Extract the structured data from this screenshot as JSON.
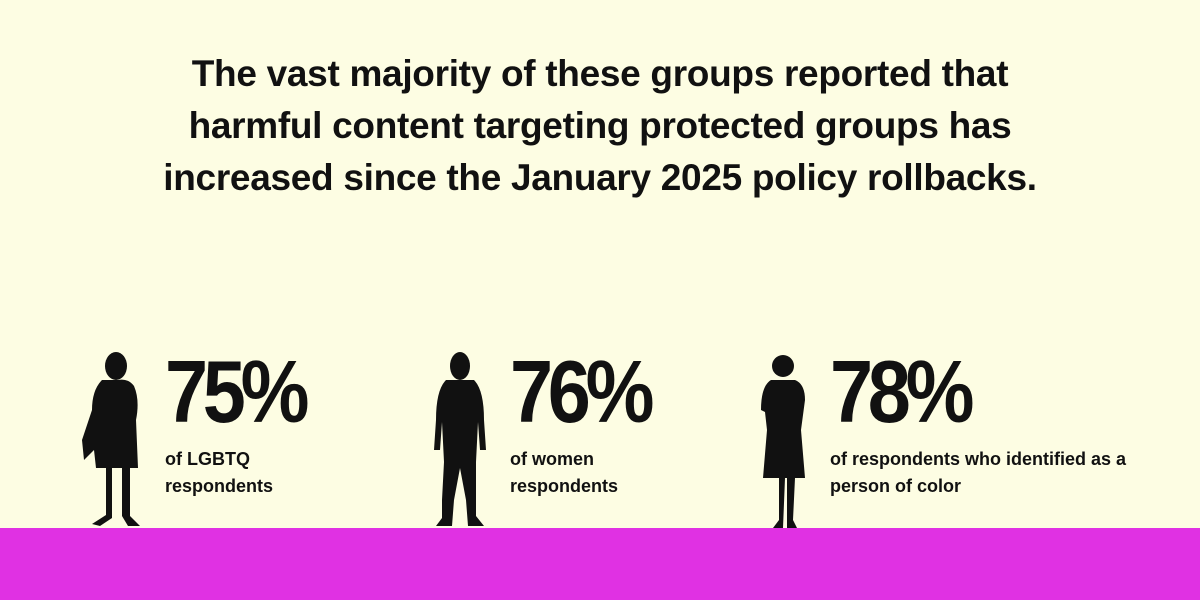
{
  "header": {
    "title": "The vast majority of these groups reported that harmful content targeting protected groups has increased since the January 2025 policy rollbacks."
  },
  "stats": [
    {
      "value": "75%",
      "label": "of LGBTQ respondents"
    },
    {
      "value": "76%",
      "label": "of women respondents"
    },
    {
      "value": "78%",
      "label": "of respondents who identified as a person of color"
    }
  ]
}
